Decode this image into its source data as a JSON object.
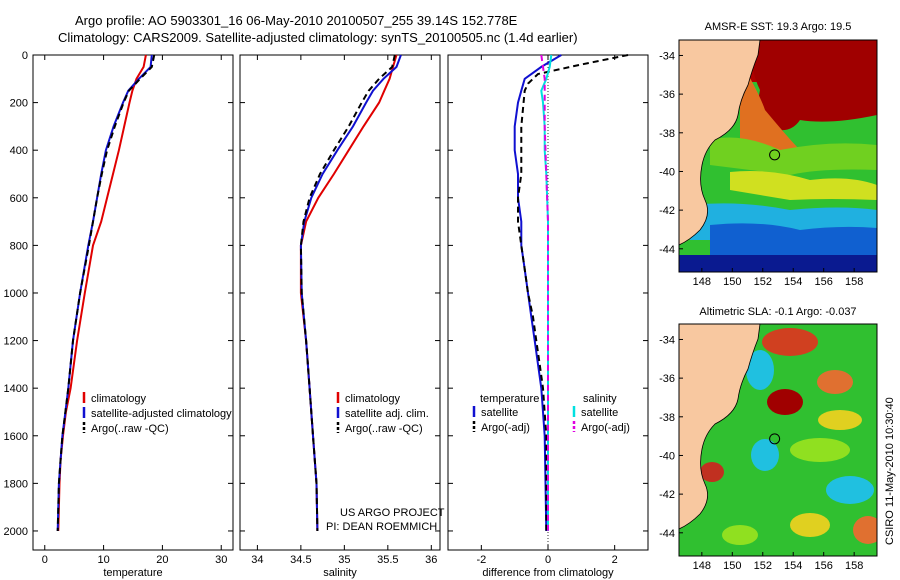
{
  "title": {
    "line1": "Argo profile: AO 5903301_16 06-May-2010 20100507_255 39.14S 152.778E",
    "line2": "Climatology: CARS2009. Satellite-adjusted climatology: synTS_20100505.nc (1.4d earlier)"
  },
  "credits": {
    "project": "US ARGO PROJECT",
    "pi": "PI: DEAN ROEMMICH",
    "vertical": "CSIRO 11-May-2010 10:30:40"
  },
  "colors": {
    "climatology": "#e00000",
    "satellite": "#1010d0",
    "argo": "#000000",
    "salinity_sat": "#00e0e0",
    "salinity_argo": "#e000e0",
    "land": "#f8c8a0"
  },
  "chart_data": [
    {
      "type": "line",
      "id": "temperature",
      "xlabel": "temperature",
      "xlim": [
        -2,
        32
      ],
      "ylim": [
        0,
        2080
      ],
      "xticks": [
        "0",
        "10",
        "20",
        "30"
      ],
      "yticks": [
        "0",
        "200",
        "400",
        "600",
        "800",
        "1000",
        "1200",
        "1400",
        "1600",
        "1800",
        "2000"
      ],
      "legend": [
        "climatology",
        "satellite-adjusted climatology",
        "Argo(..raw -QC)"
      ],
      "series": [
        {
          "name": "climatology",
          "color": "#e00000",
          "dash": "",
          "x": [
            17.2,
            16.8,
            15.6,
            14.9,
            14.4,
            13.5,
            12.6,
            11.6,
            10.6,
            9.6,
            8.2,
            6.8,
            5.5,
            4.4,
            3.6,
            3.1,
            2.7,
            2.5,
            2.3
          ],
          "y": [
            0,
            50,
            100,
            150,
            200,
            300,
            400,
            500,
            600,
            700,
            800,
            1000,
            1200,
            1400,
            1500,
            1600,
            1700,
            1800,
            2000
          ]
        },
        {
          "name": "satellite-adjusted climatology",
          "color": "#1010d0",
          "dash": "",
          "x": [
            18.2,
            18.0,
            16.0,
            14.2,
            13.3,
            11.7,
            10.4,
            9.6,
            8.9,
            8.2,
            7.4,
            6.0,
            4.8,
            4.0,
            3.5,
            3.0,
            2.7,
            2.4,
            2.2
          ],
          "y": [
            0,
            50,
            100,
            150,
            200,
            300,
            400,
            500,
            600,
            700,
            800,
            1000,
            1200,
            1400,
            1500,
            1600,
            1700,
            1800,
            2000
          ]
        },
        {
          "name": "Argo(..raw -QC)",
          "color": "#000000",
          "dash": "6,4",
          "x": [
            18.6,
            18.2,
            16.2,
            14.3,
            13.4,
            11.9,
            10.6,
            9.7,
            8.9,
            8.2,
            7.5,
            6.0,
            4.8,
            4.0,
            3.5,
            3.0,
            2.7,
            2.4,
            2.2
          ],
          "y": [
            0,
            50,
            100,
            150,
            200,
            300,
            400,
            500,
            600,
            700,
            800,
            1000,
            1200,
            1400,
            1500,
            1600,
            1700,
            1800,
            2000
          ]
        }
      ]
    },
    {
      "type": "line",
      "id": "salinity",
      "xlabel": "salinity",
      "xlim": [
        33.8,
        36.1
      ],
      "ylim": [
        0,
        2080
      ],
      "xticks": [
        "34",
        "34.5",
        "35",
        "35.5",
        "36"
      ],
      "legend": [
        "climatology",
        "satellite adj. clim.",
        "Argo(..raw -QC)"
      ],
      "series": [
        {
          "name": "climatology",
          "color": "#e00000",
          "dash": "",
          "x": [
            35.6,
            35.56,
            35.52,
            35.46,
            35.4,
            35.22,
            35.05,
            34.88,
            34.7,
            34.56,
            34.5,
            34.5,
            34.56,
            34.6,
            34.64,
            34.68,
            34.69
          ],
          "y": [
            0,
            50,
            100,
            150,
            200,
            300,
            400,
            500,
            600,
            700,
            800,
            1000,
            1200,
            1400,
            1600,
            1800,
            2000
          ]
        },
        {
          "name": "satellite adj. clim.",
          "color": "#1010d0",
          "dash": "",
          "x": [
            35.65,
            35.6,
            35.45,
            35.33,
            35.25,
            35.1,
            34.92,
            34.75,
            34.62,
            34.54,
            34.5,
            34.51,
            34.56,
            34.6,
            34.64,
            34.68,
            34.69
          ],
          "y": [
            0,
            50,
            100,
            150,
            200,
            300,
            400,
            500,
            600,
            700,
            800,
            1000,
            1200,
            1400,
            1600,
            1800,
            2000
          ]
        },
        {
          "name": "Argo(..raw -QC)",
          "color": "#000000",
          "dash": "6,4",
          "x": [
            35.58,
            35.55,
            35.4,
            35.28,
            35.2,
            35.05,
            34.88,
            34.72,
            34.6,
            34.53,
            34.5,
            34.51,
            34.56,
            34.6,
            34.64,
            34.68,
            34.69
          ],
          "y": [
            0,
            50,
            100,
            150,
            200,
            300,
            400,
            500,
            600,
            700,
            800,
            1000,
            1200,
            1400,
            1600,
            1800,
            2000
          ]
        }
      ]
    },
    {
      "type": "line",
      "id": "difference",
      "xlabel": "difference from climatology",
      "xlim": [
        -3,
        3
      ],
      "ylim": [
        0,
        2080
      ],
      "xticks": [
        "-2",
        "0",
        "2"
      ],
      "legend": {
        "temperature": [
          "satellite",
          "Argo(-adj)"
        ],
        "salinity": [
          "satellite",
          "Argo(-adj)"
        ],
        "headers": [
          "temperature",
          "salinity"
        ]
      },
      "series": [
        {
          "name": "temperature satellite",
          "color": "#1010d0",
          "dash": "",
          "x": [
            0.4,
            -0.2,
            -0.7,
            -0.8,
            -0.9,
            -1.0,
            -1.0,
            -0.9,
            -0.9,
            -0.8,
            -0.8,
            -0.7,
            -0.6,
            -0.5,
            -0.4,
            -0.3,
            -0.2,
            -0.1,
            -0.05
          ],
          "y": [
            0,
            50,
            100,
            150,
            200,
            300,
            400,
            500,
            600,
            700,
            800,
            900,
            1000,
            1100,
            1200,
            1300,
            1400,
            1600,
            2000
          ]
        },
        {
          "name": "temperature Argo(-adj)",
          "color": "#000000",
          "dash": "6,4",
          "x": [
            2.4,
            1.0,
            -0.3,
            -0.6,
            -0.7,
            -0.8,
            -0.8,
            -0.8,
            -0.9,
            -0.9,
            -0.8,
            -0.7,
            -0.6,
            -0.45,
            -0.35,
            -0.25,
            -0.15,
            -0.05,
            -0.05
          ],
          "y": [
            0,
            40,
            80,
            120,
            150,
            300,
            400,
            500,
            600,
            700,
            800,
            900,
            1000,
            1100,
            1200,
            1300,
            1400,
            1600,
            2000
          ]
        },
        {
          "name": "salinity satellite",
          "color": "#00e0e0",
          "dash": "",
          "x": [
            0.1,
            0.05,
            -0.05,
            -0.2,
            -0.15,
            -0.1,
            -0.1,
            -0.05,
            0.0,
            0.0,
            0.0,
            0.0
          ],
          "y": [
            0,
            50,
            100,
            150,
            200,
            300,
            400,
            500,
            700,
            1000,
            1500,
            2000
          ]
        },
        {
          "name": "salinity Argo(-adj)",
          "color": "#e000e0",
          "dash": "6,4",
          "x": [
            -0.2,
            -0.15,
            -0.1,
            -0.1,
            -0.1,
            -0.05,
            0.0,
            0.0,
            0.0,
            0.0
          ],
          "y": [
            0,
            50,
            100,
            200,
            300,
            500,
            700,
            1000,
            1500,
            2000
          ]
        }
      ]
    },
    {
      "type": "heatmap",
      "id": "sst-map",
      "title": "AMSR-E SST: 19.3 Argo: 19.5",
      "xticks": [
        "148",
        "150",
        "152",
        "154",
        "156",
        "158"
      ],
      "yticks": [
        "-34",
        "-36",
        "-38",
        "-40",
        "-42",
        "-44"
      ],
      "argo_position": {
        "lon": 152.778,
        "lat": -39.14
      }
    },
    {
      "type": "heatmap",
      "id": "sla-map",
      "title": "Altimetric SLA: -0.1 Argo: -0.037",
      "xticks": [
        "148",
        "150",
        "152",
        "154",
        "156",
        "158"
      ],
      "yticks": [
        "-34",
        "-36",
        "-38",
        "-40",
        "-42",
        "-44"
      ],
      "argo_position": {
        "lon": 152.778,
        "lat": -39.14
      }
    }
  ]
}
